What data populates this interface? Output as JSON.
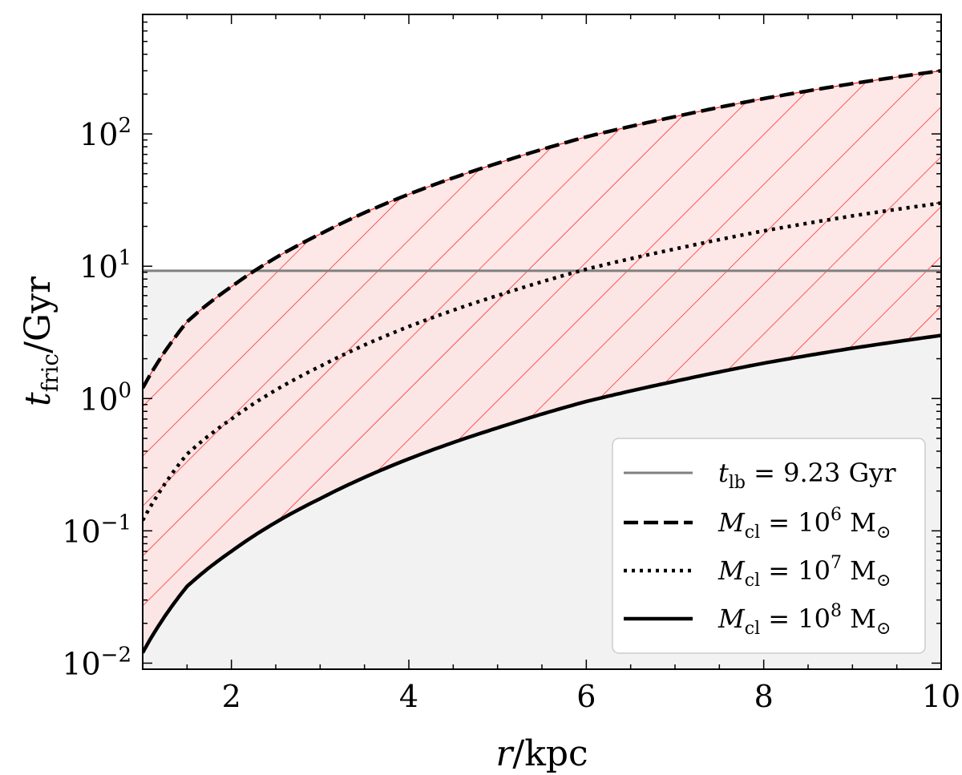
{
  "chart_data": {
    "type": "line",
    "xlabel": "r/kpc",
    "ylabel": "t_fric/Gyr",
    "xlim": [
      1,
      10
    ],
    "ylim": [
      0.009,
      800
    ],
    "yscale": "log",
    "x_ticks": [
      {
        "value": 2,
        "label": "2"
      },
      {
        "value": 4,
        "label": "4"
      },
      {
        "value": 6,
        "label": "6"
      },
      {
        "value": 8,
        "label": "8"
      },
      {
        "value": 10,
        "label": "10"
      }
    ],
    "y_ticks": [
      {
        "value": 0.01,
        "base": "10",
        "exp": "−2"
      },
      {
        "value": 0.1,
        "base": "10",
        "exp": "−1"
      },
      {
        "value": 1,
        "base": "10",
        "exp": "0"
      },
      {
        "value": 10,
        "base": "10",
        "exp": "1"
      },
      {
        "value": 100,
        "base": "10",
        "exp": "2"
      }
    ],
    "hline": {
      "name": "t_lb = 9.23 Gyr",
      "value": 9.23,
      "color": "#808080",
      "region_below_color": "#f2f2f2"
    },
    "series": [
      {
        "name": "M_cl = 10^6 M_sun",
        "style": "dashed",
        "x": [
          1,
          1.5,
          2,
          3,
          4,
          5,
          6,
          7,
          8,
          9,
          10
        ],
        "y": [
          1.2,
          3.8,
          7.0,
          17.5,
          35,
          60,
          95,
          135,
          185,
          240,
          300
        ]
      },
      {
        "name": "M_cl = 10^7 M_sun",
        "style": "dotted",
        "x": [
          1,
          1.5,
          2,
          3,
          4,
          5,
          6,
          7,
          8,
          9,
          10
        ],
        "y": [
          0.12,
          0.38,
          0.7,
          1.75,
          3.5,
          6.0,
          9.5,
          13.5,
          18.5,
          24,
          30
        ]
      },
      {
        "name": "M_cl = 10^8 M_sun",
        "style": "solid",
        "x": [
          1,
          1.5,
          2,
          3,
          4,
          5,
          6,
          7,
          8,
          9,
          10
        ],
        "y": [
          0.012,
          0.038,
          0.07,
          0.175,
          0.35,
          0.6,
          0.95,
          1.35,
          1.85,
          2.4,
          3.0
        ]
      }
    ],
    "band": {
      "between": [
        "M_cl = 10^6 M_sun",
        "M_cl = 10^8 M_sun"
      ],
      "fill": "#fde3e3",
      "hatch_color": "#ff1a1a",
      "hatch": "diagonal"
    },
    "legend": {
      "placement": "lower-right",
      "entries": [
        {
          "style": "gray",
          "sym": "t",
          "sub": "lb",
          "rhs": " = 9.23 Gyr",
          "exp": ""
        },
        {
          "style": "dashed",
          "sym": "M",
          "sub": "cl",
          "rhs": " = 10",
          "exp": "6",
          "unit": " M",
          "unit_sub": "⊙"
        },
        {
          "style": "dotted",
          "sym": "M",
          "sub": "cl",
          "rhs": " = 10",
          "exp": "7",
          "unit": " M",
          "unit_sub": "⊙"
        },
        {
          "style": "solid",
          "sym": "M",
          "sub": "cl",
          "rhs": " = 10",
          "exp": "8",
          "unit": " M",
          "unit_sub": "⊙"
        }
      ]
    }
  }
}
